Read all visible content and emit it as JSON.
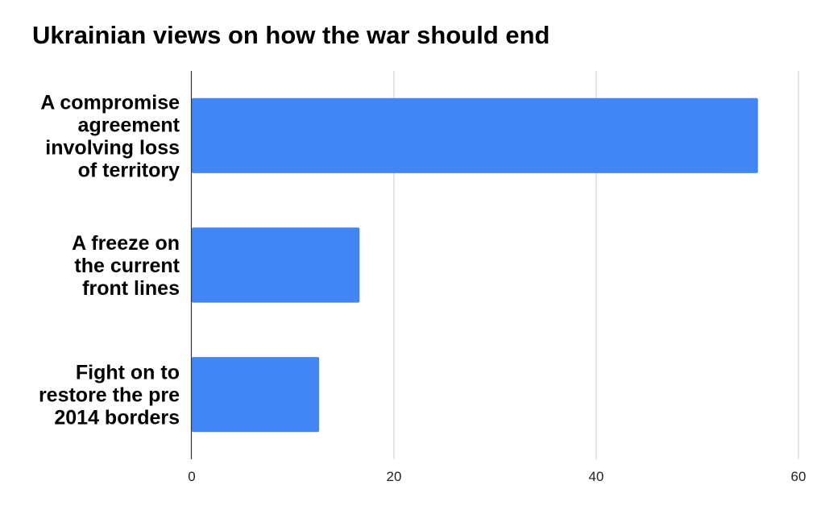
{
  "chart_data": {
    "type": "bar",
    "orientation": "horizontal",
    "title": "Ukrainian views on how the war should end",
    "categories": [
      [
        "A compromise",
        "agreement",
        "involving loss",
        "of territory"
      ],
      [
        "A freeze on",
        "the current",
        "front lines"
      ],
      [
        "Fight on to",
        "restore the pre",
        "2014 borders"
      ]
    ],
    "values": [
      56,
      16.6,
      12.6
    ],
    "xlim": [
      0,
      60
    ],
    "xticks": [
      "0",
      "20",
      "40",
      "60"
    ],
    "xlabel": "",
    "ylabel": "",
    "grid": true,
    "colors": {
      "bar": "#4285f4",
      "grid": "#cccccc",
      "axis": "#333333"
    }
  }
}
